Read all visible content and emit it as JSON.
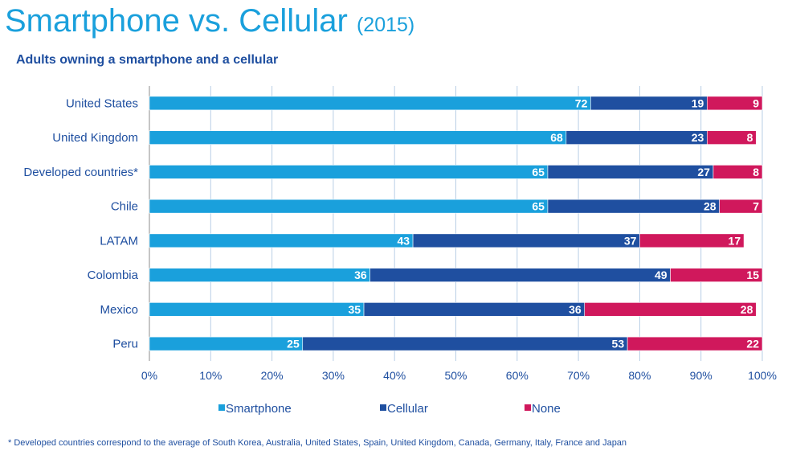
{
  "page": {
    "title": "Smartphone vs. Cellular",
    "title_year": "(2015)",
    "subtitle": "Adults owning a smartphone and a cellular",
    "footnote": "* Developed countries correspond to the average of South Korea, Australia, United States, Spain, United Kingdom, Canada, Germany, Italy, France and Japan"
  },
  "chart_data": {
    "type": "bar",
    "orientation": "horizontal",
    "stacked": true,
    "categories": [
      "United States",
      "United Kingdom",
      "Developed countries*",
      "Chile",
      "LATAM",
      "Colombia",
      "Mexico",
      "Peru"
    ],
    "series": [
      {
        "name": "Smartphone",
        "color": "#1aa0dc",
        "values": [
          72,
          68,
          65,
          65,
          43,
          36,
          35,
          25
        ]
      },
      {
        "name": "Cellular",
        "color": "#1f4fa0",
        "values": [
          19,
          23,
          27,
          28,
          37,
          49,
          36,
          53
        ]
      },
      {
        "name": "None",
        "color": "#d0185c",
        "values": [
          9,
          8,
          8,
          7,
          17,
          15,
          28,
          22
        ]
      }
    ],
    "xlim": [
      0,
      100
    ],
    "xticks": [
      "0%",
      "10%",
      "20%",
      "30%",
      "40%",
      "50%",
      "60%",
      "70%",
      "80%",
      "90%",
      "100%"
    ],
    "grid": "vertical",
    "legend_position": "bottom"
  }
}
